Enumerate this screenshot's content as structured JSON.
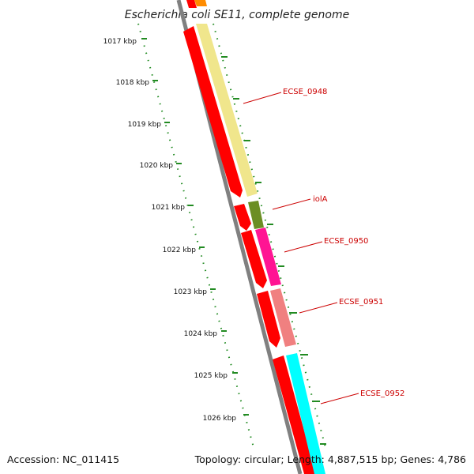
{
  "title": "Escherichia coli SE11, complete genome",
  "footer": {
    "accession": "Accession: NC_011415",
    "topology": "Topology: circular; Length: 4,887,515 bp; Genes: 4,786"
  },
  "ticks": [
    "1017 kbp",
    "1018 kbp",
    "1019 kbp",
    "1020 kbp",
    "1021 kbp",
    "1022 kbp",
    "1023 kbp",
    "1024 kbp",
    "1025 kbp",
    "1026 kbp"
  ],
  "gene_labels": {
    "ecse_0948": "ECSE_0948",
    "iola": "iolA",
    "ecse_0950": "ECSE_0950",
    "ecse_0951": "ECSE_0951",
    "ecse_0952": "ECSE_0952"
  },
  "colors": {
    "backbone": "#808080",
    "cds": "#ff0000",
    "ecse_0948": "#f0e68c",
    "iola": "#6b8e23",
    "ecse_0950": "#ff1493",
    "ecse_0951": "#f08080",
    "ecse_0952": "#00ffff",
    "top_partial": "#ff8c00",
    "ticks": "#228b22",
    "label": "#cc0000"
  }
}
